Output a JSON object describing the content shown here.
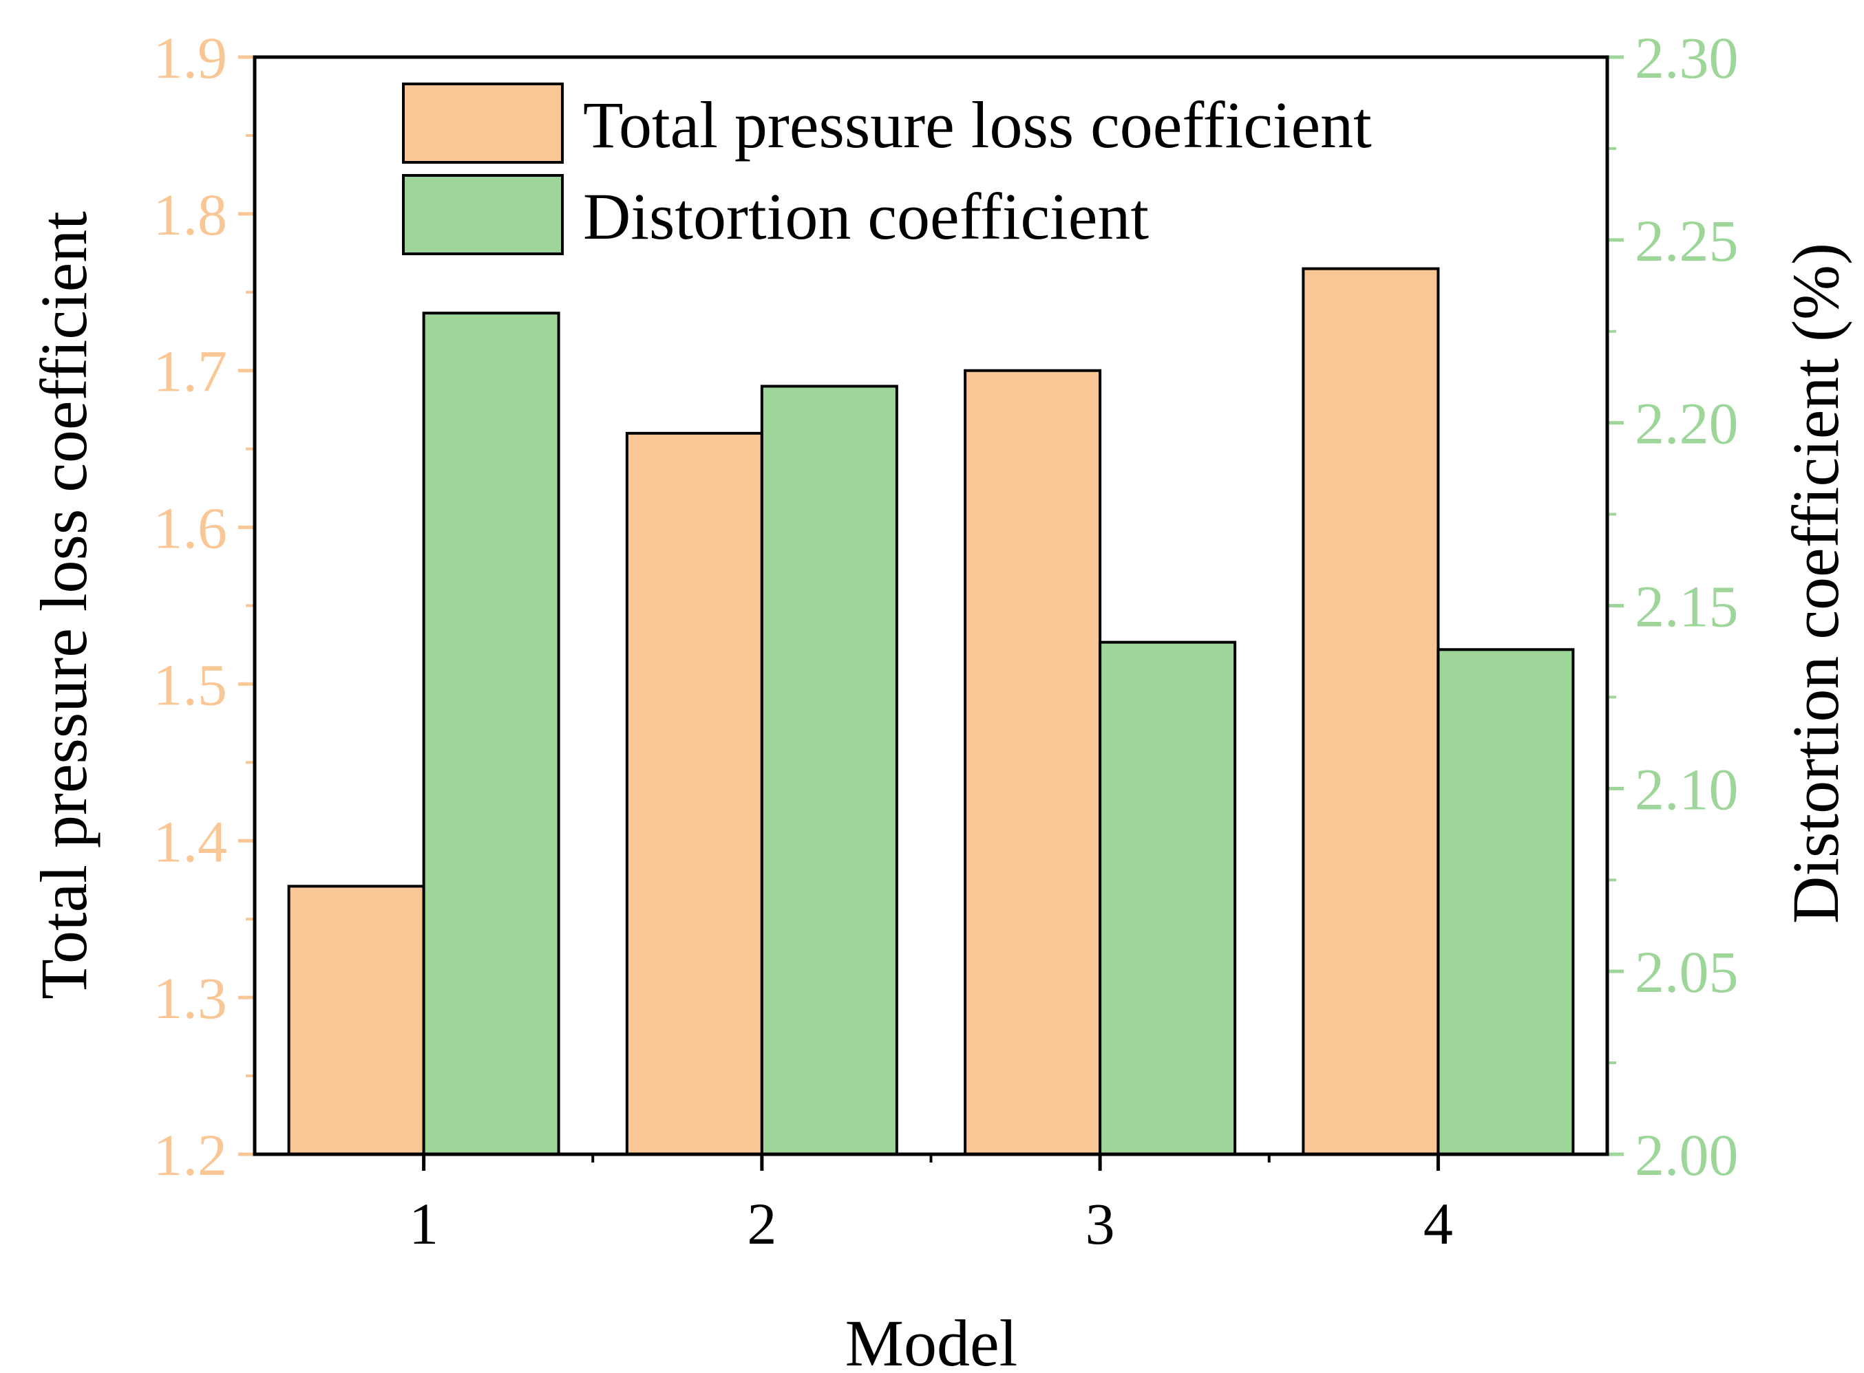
{
  "chart_data": {
    "type": "bar",
    "xlabel": "Model",
    "categories": [
      "1",
      "2",
      "3",
      "4"
    ],
    "series": [
      {
        "name": "Total pressure loss coefficient",
        "axis": "left",
        "color": "#F9C796",
        "values": [
          1.371,
          1.66,
          1.7,
          1.765
        ]
      },
      {
        "name": "Distortion coefficient",
        "axis": "right",
        "color": "#9ED69A",
        "values": [
          2.23,
          2.21,
          2.14,
          2.138
        ]
      }
    ],
    "y_left": {
      "label": "Total pressure loss coefficient",
      "ylim": [
        1.2,
        1.9
      ],
      "major_ticks": [
        1.2,
        1.3,
        1.4,
        1.5,
        1.6,
        1.7,
        1.8,
        1.9
      ],
      "tick_labels": [
        "1.2",
        "1.3",
        "1.4",
        "1.5",
        "1.6",
        "1.7",
        "1.8",
        "1.9"
      ],
      "color": "#F9C796"
    },
    "y_right": {
      "label": "Distortion coefficient (%)",
      "ylim": [
        2.0,
        2.3
      ],
      "major_ticks": [
        2.0,
        2.05,
        2.1,
        2.15,
        2.2,
        2.25,
        2.3
      ],
      "tick_labels": [
        "2.00",
        "2.05",
        "2.10",
        "2.15",
        "2.20",
        "2.25",
        "2.30"
      ],
      "color": "#9ED69A"
    },
    "legend": {
      "placement": "top-left",
      "entries": [
        "Total pressure loss coefficient",
        "Distortion coefficient"
      ]
    },
    "grid": false
  }
}
